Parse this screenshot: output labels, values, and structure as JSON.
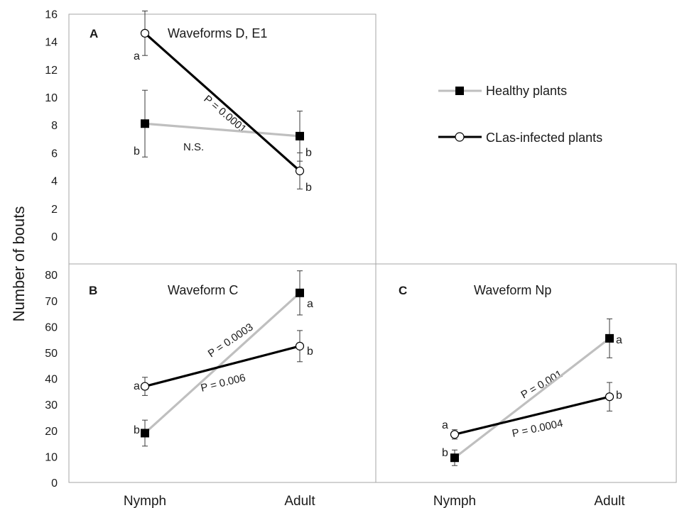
{
  "figure": {
    "ylabel": "Number  of bouts",
    "categories": [
      "Nymph",
      "Adult"
    ]
  },
  "legend": {
    "healthy_label": "Healthy  plants",
    "infected_label": "CLas-infected plants",
    "healthy_color": "#bfbfbf",
    "infected_color": "#000000"
  },
  "chart_data": [
    {
      "type": "line",
      "panel": "A",
      "title": "Waveforms D, E1",
      "categories": [
        "Nymph",
        "Adult"
      ],
      "ylim": [
        0,
        18
      ],
      "yticks": [
        0,
        2,
        4,
        6,
        8,
        10,
        12,
        14,
        16,
        18
      ],
      "series": [
        {
          "name": "Healthy  plants",
          "values": [
            8.1,
            7.2
          ],
          "err": [
            2.4,
            1.8
          ],
          "letters": [
            "b",
            "b"
          ]
        },
        {
          "name": "CLas-infected plants",
          "values": [
            14.6,
            4.7
          ],
          "err": [
            1.6,
            1.3
          ],
          "letters": [
            "a",
            "b"
          ]
        }
      ],
      "annotations": [
        "N.S.",
        "P = 0.0001"
      ]
    },
    {
      "type": "line",
      "panel": "B",
      "title": "Waveform C",
      "categories": [
        "Nymph",
        "Adult"
      ],
      "ylim": [
        0,
        80
      ],
      "yticks": [
        0,
        10,
        20,
        30,
        40,
        50,
        60,
        70,
        80
      ],
      "series": [
        {
          "name": "Healthy  plants",
          "values": [
            19,
            73
          ],
          "err": [
            5,
            8.5
          ],
          "letters": [
            "b",
            "a"
          ]
        },
        {
          "name": "CLas-infected plants",
          "values": [
            37,
            52.5
          ],
          "err": [
            3.5,
            6
          ],
          "letters": [
            "a",
            "b"
          ]
        }
      ],
      "annotations": [
        "P = 0.0003",
        "P = 0.006"
      ]
    },
    {
      "type": "line",
      "panel": "C",
      "title": "Waveform Np",
      "categories": [
        "Nymph",
        "Adult"
      ],
      "ylim": [
        0,
        80
      ],
      "series": [
        {
          "name": "Healthy  plants",
          "values": [
            9.5,
            55.5
          ],
          "err": [
            3,
            7.5
          ],
          "letters": [
            "b",
            "a"
          ]
        },
        {
          "name": "CLas-infected plants",
          "values": [
            18.5,
            33
          ],
          "err": [
            1.8,
            5.5
          ],
          "letters": [
            "a",
            "b"
          ]
        }
      ],
      "annotations": [
        "P = 0.001",
        "P = 0.0004"
      ]
    }
  ]
}
